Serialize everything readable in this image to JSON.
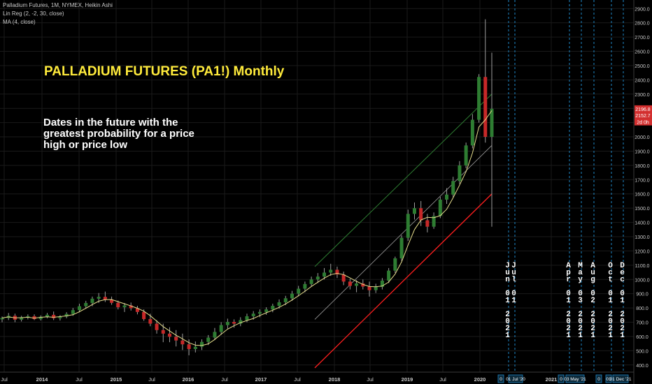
{
  "header": {
    "line1": "Palladium Futures, 1M, NYMEX, Heikin Ashi",
    "line2": "Lin Reg (2, -2, 30, close)",
    "line3": "MA (4, close)"
  },
  "annotations": {
    "title": "PALLADIUM FUTURES (PA1!) Monthly",
    "note": "Dates in the future with the greatest probability for a price high or price low"
  },
  "future_dates": [
    {
      "label": "Jun 01 2021",
      "vertical": "J\nu\nn\n\n0\n1\n\n2\n0\n2\n1"
    },
    {
      "label": "Jul 01",
      "vertical": "J\nu\nl\n\n0\n1"
    },
    {
      "label": "Apr 01 2021",
      "vertical": "A\np\nr\n\n0\n1\n\n2\n0\n2\n1"
    },
    {
      "label": "May 03 2021",
      "vertical": "M\na\ny\n\n0\n3\n\n2\n0\n2\n1"
    },
    {
      "label": "Aug 02 2021",
      "vertical": "A\nu\ng\n\n0\n2\n\n2\n0\n2\n1"
    },
    {
      "label": "Oct 01 2021",
      "vertical": "O\nc\nt\n\n0\n1\n\n2\n0\n2\n1"
    },
    {
      "label": "Dec 01 2021",
      "vertical": "D\ne\nc\n\n0\n1\n\n2\n0\n2\n1"
    }
  ],
  "price_tags": {
    "last": "2196.8",
    "close": "2152.7",
    "countdown": "2d 0h"
  },
  "bottom_tags": [
    "0",
    "01 Jul '20",
    "0",
    "03 May '21",
    "0",
    "01",
    "01 Dec '21"
  ],
  "colors": {
    "background": "#000000",
    "up_candle": "#2e7d32",
    "down_candle": "#c62828",
    "ma_line": "#e6dd8c",
    "linreg_upper": "#2e7d32",
    "linreg_lower": "#ff1f1f",
    "linreg_mid": "#9e9e9e",
    "cycle_line": "#1e88c8",
    "tag": "#d32f2f"
  },
  "chart_data": {
    "type": "candlestick",
    "title": "Palladium Futures, 1M, NYMEX, Heikin Ashi",
    "x_ticks": [
      "Jul",
      "2014",
      "Jul",
      "2015",
      "Jul",
      "2016",
      "Jul",
      "2017",
      "Jul",
      "2018",
      "Jul",
      "2019",
      "Jul",
      "2020",
      "2021"
    ],
    "y_ticks": [
      400,
      500,
      600,
      700,
      800,
      900,
      1000,
      1100,
      1200,
      1300,
      1400,
      1500,
      1600,
      1700,
      1800,
      1900,
      2000,
      2100,
      2200,
      2300,
      2400,
      2500,
      2600,
      2700,
      2800,
      2900
    ],
    "ylim": [
      350,
      2960
    ],
    "grid": true,
    "ohlc": [
      [
        720,
        740,
        700,
        730
      ],
      [
        730,
        765,
        715,
        745
      ],
      [
        745,
        760,
        700,
        718
      ],
      [
        718,
        745,
        705,
        735
      ],
      [
        735,
        755,
        720,
        742
      ],
      [
        742,
        755,
        715,
        722
      ],
      [
        722,
        748,
        712,
        738
      ],
      [
        738,
        765,
        728,
        752
      ],
      [
        752,
        775,
        715,
        728
      ],
      [
        728,
        750,
        712,
        740
      ],
      [
        740,
        770,
        728,
        758
      ],
      [
        758,
        800,
        745,
        785
      ],
      [
        785,
        830,
        770,
        812
      ],
      [
        812,
        850,
        795,
        835
      ],
      [
        835,
        880,
        812,
        865
      ],
      [
        865,
        905,
        835,
        878
      ],
      [
        878,
        915,
        842,
        858
      ],
      [
        858,
        880,
        822,
        836
      ],
      [
        836,
        852,
        790,
        805
      ],
      [
        805,
        835,
        772,
        818
      ],
      [
        818,
        838,
        782,
        798
      ],
      [
        798,
        815,
        755,
        772
      ],
      [
        772,
        790,
        710,
        722
      ],
      [
        722,
        760,
        672,
        690
      ],
      [
        690,
        715,
        620,
        645
      ],
      [
        645,
        690,
        560,
        620
      ],
      [
        620,
        665,
        560,
        598
      ],
      [
        598,
        645,
        530,
        572
      ],
      [
        572,
        620,
        505,
        545
      ],
      [
        545,
        580,
        468,
        512
      ],
      [
        512,
        565,
        488,
        528
      ],
      [
        528,
        580,
        505,
        562
      ],
      [
        562,
        610,
        540,
        592
      ],
      [
        592,
        660,
        575,
        632
      ],
      [
        632,
        700,
        612,
        680
      ],
      [
        680,
        725,
        655,
        702
      ],
      [
        702,
        720,
        662,
        690
      ],
      [
        690,
        735,
        672,
        715
      ],
      [
        715,
        760,
        700,
        742
      ],
      [
        742,
        778,
        718,
        760
      ],
      [
        760,
        790,
        735,
        772
      ],
      [
        772,
        805,
        752,
        790
      ],
      [
        790,
        830,
        770,
        815
      ],
      [
        815,
        860,
        795,
        840
      ],
      [
        840,
        885,
        820,
        868
      ],
      [
        868,
        920,
        850,
        900
      ],
      [
        900,
        955,
        882,
        935
      ],
      [
        935,
        985,
        910,
        968
      ],
      [
        968,
        1020,
        950,
        1000
      ],
      [
        1000,
        1045,
        975,
        1020
      ],
      [
        1020,
        1080,
        1000,
        1048
      ],
      [
        1048,
        1110,
        1025,
        1068
      ],
      [
        1068,
        1090,
        1010,
        1035
      ],
      [
        1035,
        1055,
        960,
        985
      ],
      [
        985,
        1005,
        930,
        955
      ],
      [
        955,
        995,
        910,
        972
      ],
      [
        972,
        1000,
        930,
        950
      ],
      [
        950,
        985,
        880,
        925
      ],
      [
        925,
        970,
        905,
        948
      ],
      [
        948,
        1010,
        930,
        992
      ],
      [
        992,
        1080,
        975,
        1062
      ],
      [
        1062,
        1160,
        1045,
        1148
      ],
      [
        1148,
        1310,
        1130,
        1292
      ],
      [
        1292,
        1490,
        1270,
        1460
      ],
      [
        1460,
        1540,
        1420,
        1500
      ],
      [
        1500,
        1550,
        1375,
        1415
      ],
      [
        1415,
        1460,
        1330,
        1370
      ],
      [
        1370,
        1470,
        1355,
        1445
      ],
      [
        1445,
        1580,
        1430,
        1560
      ],
      [
        1560,
        1640,
        1530,
        1595
      ],
      [
        1595,
        1720,
        1575,
        1690
      ],
      [
        1690,
        1830,
        1670,
        1800
      ],
      [
        1800,
        1960,
        1780,
        1940
      ],
      [
        1940,
        2160,
        1920,
        2120
      ],
      [
        2120,
        2440,
        2100,
        2420
      ],
      [
        2420,
        2825,
        1960,
        2000
      ],
      [
        2000,
        2590,
        1370,
        2197
      ]
    ]
  }
}
